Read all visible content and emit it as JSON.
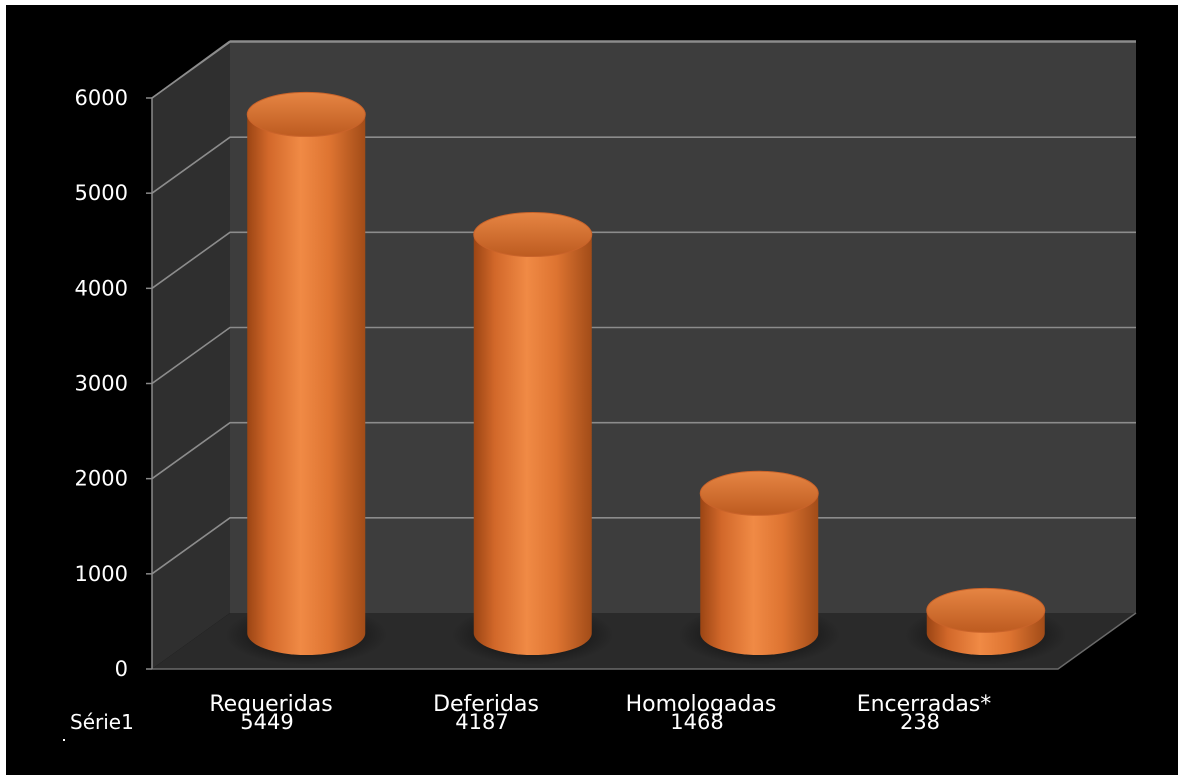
{
  "chart_data": {
    "type": "bar",
    "categories": [
      "Requeridas",
      "Deferidas",
      "Homologadas",
      "Encerradas*"
    ],
    "series": [
      {
        "name": "Série1",
        "values": [
          5449,
          4187,
          1468,
          238
        ]
      }
    ],
    "ylim": [
      0,
      6000
    ],
    "yticks": [
      0,
      1000,
      2000,
      3000,
      4000,
      5000,
      6000
    ],
    "grid": true,
    "legend": "none",
    "bar_color": "#e07432",
    "wall_color": "#3d3d3d",
    "floor_color": "#2a2a2a",
    "background": "#000000"
  }
}
